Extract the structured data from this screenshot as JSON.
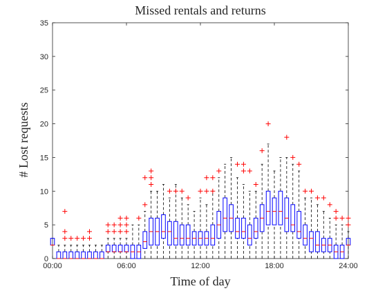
{
  "chart_data": {
    "type": "box",
    "title": "Missed rentals and returns",
    "xlabel": "Time of day",
    "ylabel": "# Lost requests",
    "xlim": [
      0,
      24
    ],
    "ylim": [
      0,
      35
    ],
    "x_ticks": [
      "00:00",
      "06:00",
      "12:00",
      "18:00",
      "24:00"
    ],
    "y_ticks": [
      "0",
      "5",
      "10",
      "15",
      "20",
      "25",
      "30",
      "35"
    ],
    "grid": false,
    "colors": {
      "box": "#0000ff",
      "median": "#ff0000",
      "outlier": "#ff0000",
      "whisker": "#000000",
      "axis": "#262626"
    },
    "boxes": [
      {
        "t": 0.0,
        "q1": 2,
        "median": 2,
        "q3": 3,
        "lw": 2,
        "uw": 3,
        "outliers": []
      },
      {
        "t": 0.5,
        "q1": 0,
        "median": 0,
        "q3": 1,
        "lw": 0,
        "uw": 2,
        "outliers": []
      },
      {
        "t": 1.0,
        "q1": 0,
        "median": 0,
        "q3": 1,
        "lw": 0,
        "uw": 2,
        "outliers": [
          3,
          4,
          7
        ]
      },
      {
        "t": 1.5,
        "q1": 0,
        "median": 0,
        "q3": 1,
        "lw": 0,
        "uw": 2,
        "outliers": [
          3
        ]
      },
      {
        "t": 2.0,
        "q1": 0,
        "median": 0,
        "q3": 1,
        "lw": 0,
        "uw": 2,
        "outliers": [
          3
        ]
      },
      {
        "t": 2.5,
        "q1": 0,
        "median": 0,
        "q3": 1,
        "lw": 0,
        "uw": 2,
        "outliers": [
          3
        ]
      },
      {
        "t": 3.0,
        "q1": 0,
        "median": 0,
        "q3": 1,
        "lw": 0,
        "uw": 2,
        "outliers": [
          3,
          4
        ]
      },
      {
        "t": 3.5,
        "q1": 0,
        "median": 0,
        "q3": 1,
        "lw": 0,
        "uw": 2,
        "outliers": []
      },
      {
        "t": 4.0,
        "q1": 0,
        "median": 0,
        "q3": 1,
        "lw": 0,
        "uw": 2,
        "outliers": []
      },
      {
        "t": 4.5,
        "q1": 1,
        "median": 1,
        "q3": 2,
        "lw": 0,
        "uw": 3,
        "outliers": [
          4,
          5
        ]
      },
      {
        "t": 5.0,
        "q1": 1,
        "median": 1,
        "q3": 2,
        "lw": 0,
        "uw": 3,
        "outliers": [
          4,
          5
        ]
      },
      {
        "t": 5.5,
        "q1": 1,
        "median": 1,
        "q3": 2,
        "lw": 0,
        "uw": 3,
        "outliers": [
          4,
          5,
          6
        ]
      },
      {
        "t": 6.0,
        "q1": 1,
        "median": 1,
        "q3": 2,
        "lw": 0,
        "uw": 3,
        "outliers": [
          4,
          5,
          6
        ]
      },
      {
        "t": 6.5,
        "q1": 0,
        "median": 1,
        "q3": 2,
        "lw": 0,
        "uw": 5,
        "outliers": []
      },
      {
        "t": 7.0,
        "q1": 0,
        "median": 1,
        "q3": 2,
        "lw": 0,
        "uw": 5,
        "outliers": [
          6
        ]
      },
      {
        "t": 7.5,
        "q1": 1.5,
        "median": 2.5,
        "q3": 4,
        "lw": 0,
        "uw": 7,
        "outliers": [
          8,
          12
        ]
      },
      {
        "t": 8.0,
        "q1": 2,
        "median": 4,
        "q3": 6,
        "lw": 0,
        "uw": 10,
        "outliers": [
          11,
          12,
          13
        ]
      },
      {
        "t": 8.5,
        "q1": 2,
        "median": 4,
        "q3": 6,
        "lw": 0,
        "uw": 10,
        "outliers": []
      },
      {
        "t": 9.0,
        "q1": 3,
        "median": 4,
        "q3": 6.5,
        "lw": 0,
        "uw": 11,
        "outliers": []
      },
      {
        "t": 9.5,
        "q1": 2,
        "median": 4,
        "q3": 5.5,
        "lw": 0,
        "uw": 9,
        "outliers": [
          10
        ]
      },
      {
        "t": 10.0,
        "q1": 2,
        "median": 3,
        "q3": 5.5,
        "lw": 0,
        "uw": 11,
        "outliers": [
          10
        ]
      },
      {
        "t": 10.5,
        "q1": 2,
        "median": 3,
        "q3": 5,
        "lw": 0,
        "uw": 9,
        "outliers": [
          10
        ]
      },
      {
        "t": 11.0,
        "q1": 2,
        "median": 3,
        "q3": 5,
        "lw": 0,
        "uw": 8,
        "outliers": [
          9
        ]
      },
      {
        "t": 11.5,
        "q1": 2,
        "median": 3,
        "q3": 4,
        "lw": 0,
        "uw": 7,
        "outliers": []
      },
      {
        "t": 12.0,
        "q1": 2,
        "median": 3,
        "q3": 4,
        "lw": 0,
        "uw": 9,
        "outliers": [
          10
        ]
      },
      {
        "t": 12.5,
        "q1": 2,
        "median": 3,
        "q3": 4,
        "lw": 0,
        "uw": 8,
        "outliers": [
          10,
          12
        ]
      },
      {
        "t": 13.0,
        "q1": 2,
        "median": 3,
        "q3": 5,
        "lw": 0,
        "uw": 10,
        "outliers": [
          10,
          12
        ]
      },
      {
        "t": 13.5,
        "q1": 3,
        "median": 5,
        "q3": 7,
        "lw": 0,
        "uw": 12,
        "outliers": [
          13
        ]
      },
      {
        "t": 14.0,
        "q1": 4,
        "median": 6,
        "q3": 9,
        "lw": 0,
        "uw": 14,
        "outliers": []
      },
      {
        "t": 14.5,
        "q1": 4,
        "median": 6,
        "q3": 8,
        "lw": 0,
        "uw": 15,
        "outliers": []
      },
      {
        "t": 15.0,
        "q1": 3,
        "median": 4,
        "q3": 6,
        "lw": 0,
        "uw": 12,
        "outliers": [
          14
        ]
      },
      {
        "t": 15.5,
        "q1": 3,
        "median": 4,
        "q3": 6,
        "lw": 0,
        "uw": 11,
        "outliers": [
          13,
          14
        ]
      },
      {
        "t": 16.0,
        "q1": 2,
        "median": 3,
        "q3": 5,
        "lw": 0,
        "uw": 10,
        "outliers": [
          13
        ]
      },
      {
        "t": 16.5,
        "q1": 3,
        "median": 4,
        "q3": 6,
        "lw": 0,
        "uw": 10,
        "outliers": [
          11
        ]
      },
      {
        "t": 17.0,
        "q1": 4,
        "median": 6,
        "q3": 8,
        "lw": 0,
        "uw": 14,
        "outliers": [
          16
        ]
      },
      {
        "t": 17.5,
        "q1": 5,
        "median": 7,
        "q3": 10,
        "lw": 0,
        "uw": 17,
        "outliers": [
          20
        ]
      },
      {
        "t": 18.0,
        "q1": 5,
        "median": 7,
        "q3": 9,
        "lw": 0,
        "uw": 13,
        "outliers": []
      },
      {
        "t": 18.5,
        "q1": 5,
        "median": 7,
        "q3": 10,
        "lw": 0,
        "uw": 15,
        "outliers": []
      },
      {
        "t": 19.0,
        "q1": 4,
        "median": 6,
        "q3": 9,
        "lw": 0,
        "uw": 15,
        "outliers": [
          18
        ]
      },
      {
        "t": 19.5,
        "q1": 4,
        "median": 5,
        "q3": 8,
        "lw": 0,
        "uw": 14,
        "outliers": [
          15
        ]
      },
      {
        "t": 20.0,
        "q1": 3,
        "median": 4,
        "q3": 7,
        "lw": 0,
        "uw": 13,
        "outliers": [
          14
        ]
      },
      {
        "t": 20.5,
        "q1": 2,
        "median": 3,
        "q3": 5,
        "lw": 0,
        "uw": 9,
        "outliers": [
          10
        ]
      },
      {
        "t": 21.0,
        "q1": 1,
        "median": 3,
        "q3": 4,
        "lw": 0,
        "uw": 9,
        "outliers": [
          10
        ]
      },
      {
        "t": 21.5,
        "q1": 1,
        "median": 2,
        "q3": 4,
        "lw": 0,
        "uw": 8,
        "outliers": [
          9
        ]
      },
      {
        "t": 22.0,
        "q1": 1,
        "median": 2,
        "q3": 3,
        "lw": 0,
        "uw": 7,
        "outliers": [
          9
        ]
      },
      {
        "t": 22.5,
        "q1": 1,
        "median": 2,
        "q3": 3,
        "lw": 0,
        "uw": 6,
        "outliers": [
          8
        ]
      },
      {
        "t": 23.0,
        "q1": 0,
        "median": 1,
        "q3": 2,
        "lw": 0,
        "uw": 5,
        "outliers": [
          6,
          7
        ]
      },
      {
        "t": 23.5,
        "q1": 0,
        "median": 1,
        "q3": 2,
        "lw": 0,
        "uw": 5,
        "outliers": [
          6
        ]
      },
      {
        "t": 24.0,
        "q1": 2,
        "median": 2,
        "q3": 3,
        "lw": 0,
        "uw": 4,
        "outliers": [
          5,
          6
        ]
      }
    ]
  }
}
